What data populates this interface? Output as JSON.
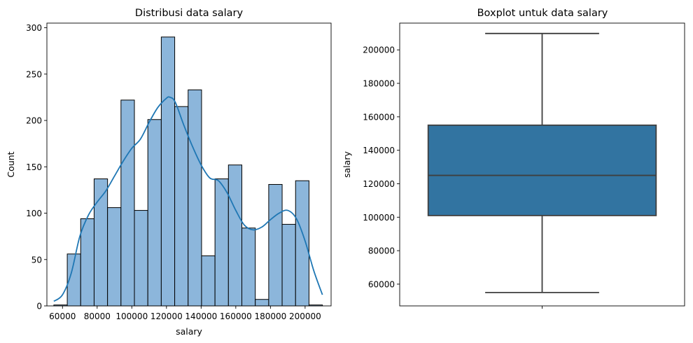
{
  "chart_data": [
    {
      "type": "histogram",
      "title": "Distribusi data salary",
      "xlabel": "salary",
      "ylabel": "Count",
      "xlim": [
        51000,
        215000
      ],
      "ylim": [
        0,
        305
      ],
      "xticks": [
        60000,
        80000,
        100000,
        120000,
        140000,
        160000,
        180000,
        200000
      ],
      "xtick_labels": [
        "60000",
        "80000",
        "100000",
        "120000",
        "140000",
        "160000",
        "180000",
        "200000"
      ],
      "yticks": [
        0,
        50,
        100,
        150,
        200,
        250,
        300
      ],
      "ytick_labels": [
        "0",
        "50",
        "100",
        "150",
        "200",
        "250",
        "300"
      ],
      "bins": [
        {
          "x0": 55000,
          "x1": 62750,
          "count": 1
        },
        {
          "x0": 62750,
          "x1": 70500,
          "count": 56
        },
        {
          "x0": 70500,
          "x1": 78250,
          "count": 94
        },
        {
          "x0": 78250,
          "x1": 86000,
          "count": 137
        },
        {
          "x0": 86000,
          "x1": 93750,
          "count": 106
        },
        {
          "x0": 93750,
          "x1": 101500,
          "count": 222
        },
        {
          "x0": 101500,
          "x1": 109250,
          "count": 103
        },
        {
          "x0": 109250,
          "x1": 117000,
          "count": 201
        },
        {
          "x0": 117000,
          "x1": 124750,
          "count": 290
        },
        {
          "x0": 124750,
          "x1": 132500,
          "count": 215
        },
        {
          "x0": 132500,
          "x1": 140250,
          "count": 233
        },
        {
          "x0": 140250,
          "x1": 148000,
          "count": 54
        },
        {
          "x0": 148000,
          "x1": 155750,
          "count": 137
        },
        {
          "x0": 155750,
          "x1": 163500,
          "count": 152
        },
        {
          "x0": 163500,
          "x1": 171250,
          "count": 84
        },
        {
          "x0": 171250,
          "x1": 179000,
          "count": 7
        },
        {
          "x0": 179000,
          "x1": 186750,
          "count": 131
        },
        {
          "x0": 186750,
          "x1": 194500,
          "count": 88
        },
        {
          "x0": 194500,
          "x1": 202250,
          "count": 135
        },
        {
          "x0": 202250,
          "x1": 210000,
          "count": 1
        }
      ],
      "kde": {
        "x": [
          55000,
          60000,
          65000,
          70000,
          75000,
          80000,
          85000,
          90000,
          95000,
          100000,
          105000,
          110000,
          115000,
          120000,
          122000,
          125000,
          130000,
          135000,
          140000,
          145000,
          150000,
          155000,
          160000,
          165000,
          170000,
          175000,
          180000,
          185000,
          190000,
          195000,
          200000,
          205000,
          210000
        ],
        "y": [
          5,
          12,
          35,
          75,
          98,
          112,
          124,
          140,
          156,
          170,
          180,
          198,
          214,
          224,
          225,
          220,
          195,
          172,
          152,
          138,
          135,
          122,
          103,
          87,
          82,
          85,
          93,
          100,
          103,
          94,
          70,
          38,
          12
        ]
      },
      "colors": {
        "bar_fill": "#8cb6db",
        "bar_edge": "#000000",
        "kde": "#1f77b4"
      },
      "grid": false
    },
    {
      "type": "boxplot",
      "title": "Boxplot untuk data salary",
      "xlabel": "",
      "ylabel": "salary",
      "ylim": [
        47000,
        216000
      ],
      "yticks": [
        60000,
        80000,
        100000,
        120000,
        140000,
        160000,
        180000,
        200000
      ],
      "ytick_labels": [
        "60000",
        "80000",
        "100000",
        "120000",
        "140000",
        "160000",
        "180000",
        "200000"
      ],
      "stats": {
        "whisker_low": 55000,
        "q1": 101000,
        "median": 125000,
        "q3": 155000,
        "whisker_high": 209800
      },
      "colors": {
        "box_fill": "#3274a1",
        "line": "#3f3f3f"
      },
      "grid": false
    }
  ]
}
